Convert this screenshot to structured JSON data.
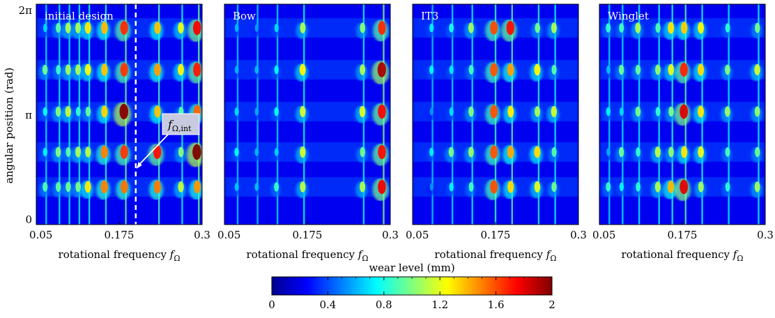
{
  "chart_data": {
    "type": "heatmap",
    "ylabel": "angular position (rad)",
    "xlabel_text": "rotational frequency",
    "xlabel_symbol": "f",
    "xlabel_subscript": "Ω",
    "xlim": [
      0.05,
      0.3
    ],
    "ylim": [
      0,
      6.2832
    ],
    "x_ticks": [
      {
        "value": 0.05,
        "label": "0.05"
      },
      {
        "value": 0.175,
        "label": "0.175"
      },
      {
        "value": 0.3,
        "label": "0.3"
      }
    ],
    "y_ticks": [
      {
        "value": 0,
        "label": "0"
      },
      {
        "value": 3.1416,
        "label": "π"
      },
      {
        "value": 6.2832,
        "label": "2π"
      }
    ],
    "panels": [
      {
        "title": "initial design",
        "vertical_marker": {
          "x": 0.2,
          "style": "dashed",
          "color": "#ffffff"
        },
        "annotation": {
          "symbol": "f",
          "subscript": "Ω,int",
          "points_to_x": 0.2
        },
        "ridges": [
          {
            "x": 0.065,
            "intensity": 0.45
          },
          {
            "x": 0.085,
            "intensity": 0.5
          },
          {
            "x": 0.1,
            "intensity": 0.55
          },
          {
            "x": 0.115,
            "intensity": 0.55
          },
          {
            "x": 0.13,
            "intensity": 0.6
          },
          {
            "x": 0.155,
            "intensity": 0.7
          },
          {
            "x": 0.185,
            "intensity": 0.95
          },
          {
            "x": 0.235,
            "intensity": 0.8
          },
          {
            "x": 0.27,
            "intensity": 0.6
          },
          {
            "x": 0.295,
            "intensity": 0.95
          }
        ]
      },
      {
        "title": "Bow",
        "ridges": [
          {
            "x": 0.07,
            "intensity": 0.35
          },
          {
            "x": 0.1,
            "intensity": 0.35
          },
          {
            "x": 0.13,
            "intensity": 0.4
          },
          {
            "x": 0.17,
            "intensity": 0.6
          },
          {
            "x": 0.26,
            "intensity": 0.55
          },
          {
            "x": 0.29,
            "intensity": 1.0
          }
        ]
      },
      {
        "title": "IT3",
        "ridges": [
          {
            "x": 0.08,
            "intensity": 0.35
          },
          {
            "x": 0.11,
            "intensity": 0.45
          },
          {
            "x": 0.14,
            "intensity": 0.55
          },
          {
            "x": 0.175,
            "intensity": 0.75
          },
          {
            "x": 0.2,
            "intensity": 0.85
          },
          {
            "x": 0.24,
            "intensity": 0.65
          },
          {
            "x": 0.265,
            "intensity": 0.55
          }
        ]
      },
      {
        "title": "Winglet",
        "ridges": [
          {
            "x": 0.065,
            "intensity": 0.4
          },
          {
            "x": 0.085,
            "intensity": 0.45
          },
          {
            "x": 0.11,
            "intensity": 0.5
          },
          {
            "x": 0.14,
            "intensity": 0.55
          },
          {
            "x": 0.16,
            "intensity": 0.65
          },
          {
            "x": 0.18,
            "intensity": 0.85
          },
          {
            "x": 0.205,
            "intensity": 0.6
          },
          {
            "x": 0.245,
            "intensity": 0.5
          },
          {
            "x": 0.29,
            "intensity": 0.55
          }
        ]
      }
    ],
    "colorbar": {
      "label": "wear level (mm)",
      "range": [
        0,
        2
      ],
      "colormap": "jet",
      "ticks": [
        {
          "value": 0,
          "label": "0"
        },
        {
          "value": 0.4,
          "label": "0.4"
        },
        {
          "value": 0.8,
          "label": "0.8"
        },
        {
          "value": 1.2,
          "label": "1.2"
        },
        {
          "value": 1.6,
          "label": "1.6"
        },
        {
          "value": 2,
          "label": "2"
        }
      ]
    }
  }
}
